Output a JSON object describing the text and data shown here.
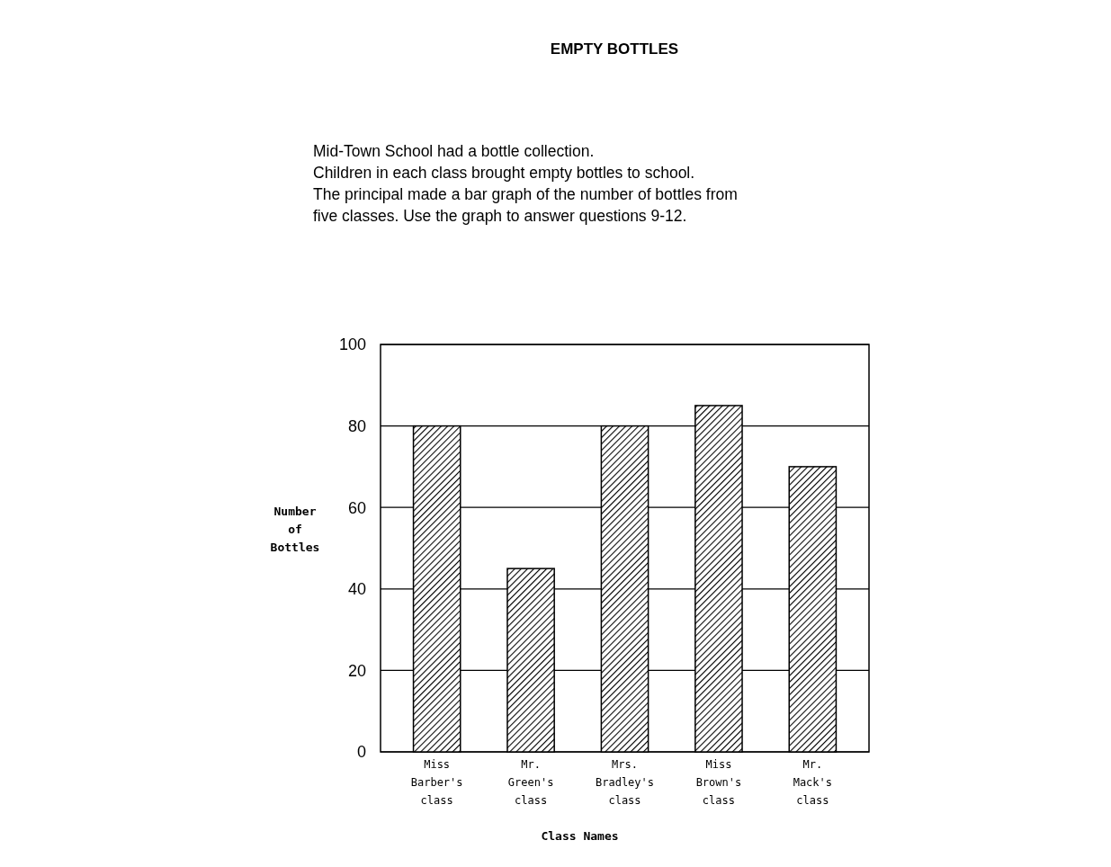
{
  "chart_data": {
    "type": "bar",
    "title": "EMPTY BOTTLES",
    "subtitle": "Mid-Town School had a bottle collection.\nChildren in each class brought empty bottles to school.\nThe principal made a bar graph of the number of bottles from\nfive classes. Use the graph to answer questions 9-12.",
    "categories": [
      "Miss Barber's class",
      "Mr. Green's class",
      "Mrs. Bradley's class",
      "Miss Brown's class",
      "Mr. Mack's class"
    ],
    "values": [
      80,
      45,
      80,
      85,
      70
    ],
    "color": "#000000",
    "xlabel": "Class Names",
    "ylabel": "Number of Bottles",
    "ylim": [
      0,
      100
    ],
    "yticks": [
      0,
      20,
      40,
      60,
      80,
      100
    ],
    "grid": "y"
  }
}
